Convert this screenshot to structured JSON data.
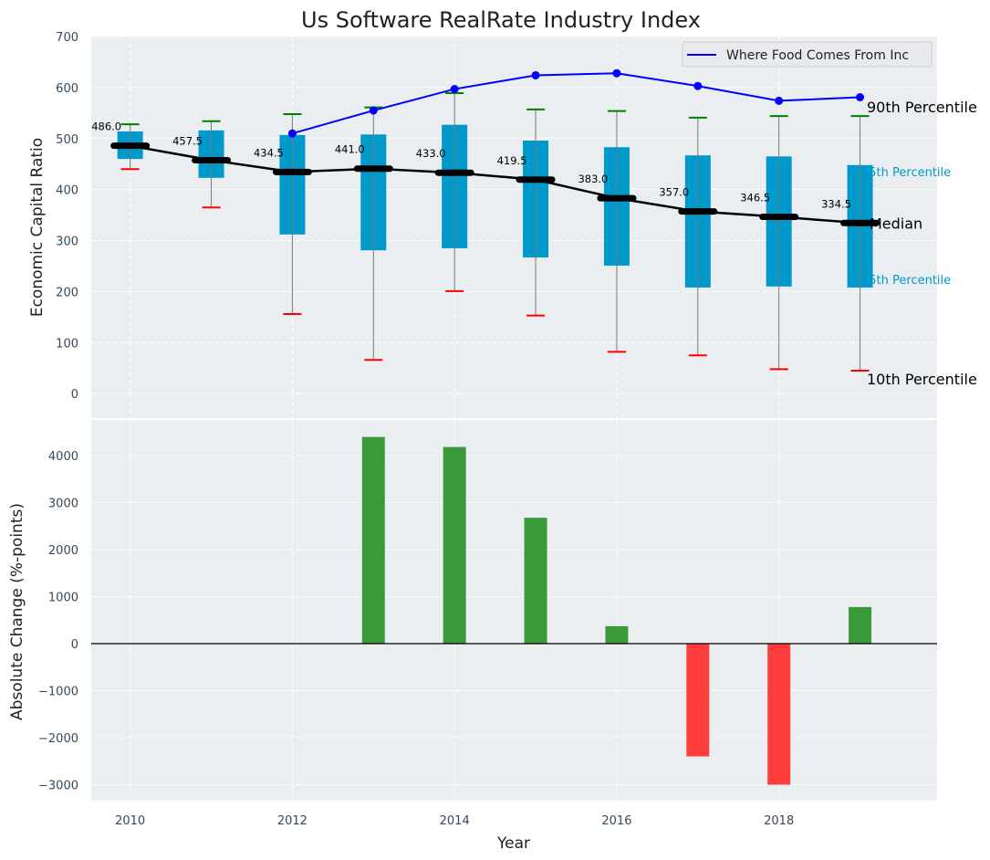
{
  "chart_data": [
    {
      "type": "box",
      "title": "Us Software RealRate Industry Index",
      "xlabel": "",
      "ylabel": "Economic Capital Ratio",
      "ylim": [
        -48,
        700
      ],
      "xlim": [
        2009.52,
        2019.95
      ],
      "yticks": [
        0,
        100,
        200,
        300,
        400,
        500,
        600,
        700
      ],
      "grid": true,
      "legend": {
        "placement": "top-right",
        "entries": [
          "Where Food Comes From Inc"
        ]
      },
      "x": [
        2010,
        2011,
        2012,
        2013,
        2014,
        2015,
        2016,
        2017,
        2018,
        2019
      ],
      "p10": [
        440,
        365,
        156,
        66,
        201,
        153,
        82,
        75,
        48,
        45
      ],
      "p25": [
        460,
        423,
        312,
        281,
        285,
        267,
        251,
        208,
        210,
        208
      ],
      "median": [
        486.0,
        457.5,
        434.5,
        441.0,
        433.0,
        419.5,
        383.0,
        357.0,
        346.5,
        334.5
      ],
      "median_labels": [
        "486.0",
        "457.5",
        "434.5",
        "441.0",
        "433.0",
        "419.5",
        "383.0",
        "357.0",
        "346.5",
        "334.5"
      ],
      "p75": [
        514,
        516,
        507,
        508,
        527,
        496,
        483,
        467,
        465,
        448
      ],
      "p90": [
        528,
        534,
        548,
        561,
        589,
        557,
        554,
        541,
        544,
        544
      ],
      "company": {
        "name": "Where Food Comes From Inc",
        "x": [
          2012,
          2013,
          2014,
          2015,
          2016,
          2017,
          2018,
          2019
        ],
        "values": [
          510,
          555,
          597,
          624,
          628,
          603,
          574,
          581
        ],
        "color": "#0000ff"
      },
      "annotations": {
        "p90": "90th Percentile",
        "p75": "75th Percentile",
        "median": "Median",
        "p25": "25th Percentile",
        "p10": "10th Percentile"
      },
      "colors": {
        "box": "#0099cc",
        "upper_cap": "#008000",
        "lower_cap": "#ff0000",
        "median": "#000000"
      }
    },
    {
      "type": "bar",
      "xlabel": "Year",
      "ylabel": "Absolute Change (%-points)",
      "ylim": [
        -3340,
        4757
      ],
      "yticks": [
        -3000,
        -2000,
        -1000,
        0,
        1000,
        2000,
        3000,
        4000
      ],
      "ytick_labels": [
        "−3000",
        "−2000",
        "−1000",
        "0",
        "1000",
        "2000",
        "3000",
        "4000"
      ],
      "xticks": [
        2010,
        2012,
        2014,
        2016,
        2018
      ],
      "xtick_labels": [
        "2010",
        "2012",
        "2014",
        "2016",
        "2018"
      ],
      "grid": true,
      "x": [
        2013,
        2014,
        2015,
        2016,
        2017,
        2018,
        2019
      ],
      "values": [
        4395,
        4182,
        2677,
        370,
        -2399,
        -3001,
        778
      ],
      "colors": {
        "positive": "#3a9a3a",
        "negative": "#ff3d3d"
      }
    }
  ]
}
